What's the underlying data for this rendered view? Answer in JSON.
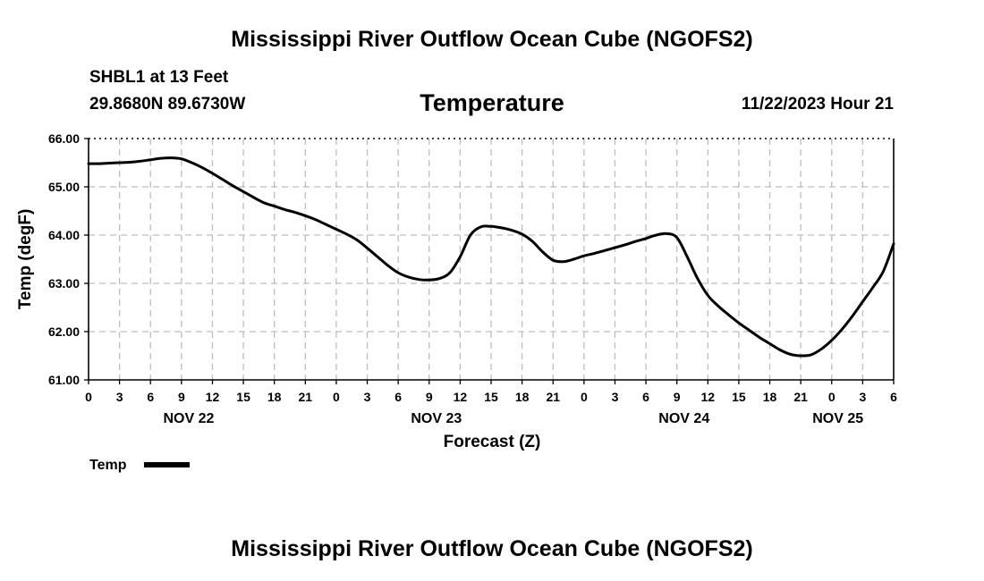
{
  "header": {
    "title": "Mississippi River Outflow Ocean Cube (NGOFS2)",
    "station": "SHBL1 at 13 Feet",
    "coords": "29.8680N  89.6730W",
    "timestamp": "11/22/2023 Hour 21"
  },
  "footer": {
    "title": "Mississippi River Outflow Ocean Cube (NGOFS2)"
  },
  "colors": {
    "line": "#000000",
    "grid": "#bdbdbd"
  },
  "chart_data": {
    "type": "line",
    "title": "Temperature",
    "xlabel": "Forecast (Z)",
    "ylabel": "Temp (degF)",
    "ylim": [
      61.0,
      66.0
    ],
    "xlim_hours": [
      0,
      78
    ],
    "grid": true,
    "y_ticks": [
      "61.00",
      "62.00",
      "63.00",
      "64.00",
      "65.00",
      "66.00"
    ],
    "x_tick_labels": [
      "0",
      "3",
      "6",
      "9",
      "12",
      "15",
      "18",
      "21",
      "0",
      "3",
      "6",
      "9",
      "12",
      "15",
      "18",
      "21",
      "0",
      "3",
      "6",
      "9",
      "12",
      "15",
      "18",
      "21",
      "0",
      "3",
      "6"
    ],
    "day_labels": [
      {
        "label": "NOV 22",
        "hour": 9.7
      },
      {
        "label": "NOV 23",
        "hour": 33.7
      },
      {
        "label": "NOV 24",
        "hour": 57.7
      },
      {
        "label": "NOV 25",
        "hour": 72.6
      }
    ],
    "legend": [
      {
        "label": "Temp",
        "position": "bottom-left"
      }
    ],
    "series": [
      {
        "name": "Temp",
        "x": [
          0,
          1,
          2,
          3,
          4,
          5,
          6,
          7,
          8,
          9,
          10,
          11,
          12,
          13,
          14,
          15,
          16,
          17,
          18,
          19,
          20,
          21,
          22,
          23,
          24,
          25,
          26,
          27,
          28,
          29,
          30,
          31,
          32,
          33,
          34,
          35,
          36,
          37,
          38,
          39,
          40,
          41,
          42,
          43,
          44,
          45,
          46,
          47,
          48,
          49,
          50,
          51,
          52,
          53,
          54,
          55,
          56,
          57,
          58,
          59,
          60,
          61,
          62,
          63,
          64,
          65,
          66,
          67,
          68,
          69,
          70,
          71,
          72,
          73,
          74,
          75,
          76,
          77,
          78
        ],
        "values": [
          65.48,
          65.48,
          65.49,
          65.5,
          65.51,
          65.53,
          65.56,
          65.59,
          65.6,
          65.58,
          65.5,
          65.4,
          65.28,
          65.15,
          65.02,
          64.9,
          64.78,
          64.67,
          64.6,
          64.53,
          64.47,
          64.4,
          64.32,
          64.22,
          64.12,
          64.02,
          63.9,
          63.73,
          63.55,
          63.37,
          63.22,
          63.13,
          63.08,
          63.07,
          63.1,
          63.22,
          63.55,
          64.0,
          64.17,
          64.18,
          64.15,
          64.1,
          64.02,
          63.87,
          63.65,
          63.48,
          63.45,
          63.5,
          63.57,
          63.62,
          63.68,
          63.74,
          63.8,
          63.87,
          63.93,
          64.0,
          64.03,
          63.95,
          63.55,
          63.1,
          62.75,
          62.53,
          62.35,
          62.18,
          62.03,
          61.88,
          61.75,
          61.62,
          61.53,
          61.5,
          61.52,
          61.64,
          61.82,
          62.05,
          62.32,
          62.62,
          62.92,
          63.25,
          63.82
        ]
      }
    ]
  }
}
